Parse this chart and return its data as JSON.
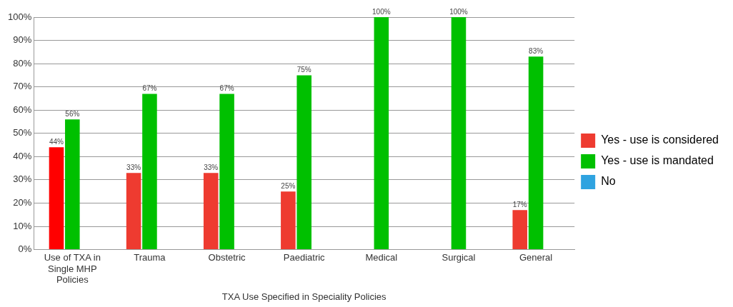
{
  "chart_data": {
    "type": "bar",
    "xlabel": "TXA Use Specified in Speciality Policies",
    "categories": [
      "Use of TXA in Single MHP Policies",
      "Trauma",
      "Obstetric",
      "Paediatric",
      "Medical",
      "Surgical",
      "General"
    ],
    "series": [
      {
        "name": "Yes - use is considered",
        "color": "#ee3b30",
        "colors": [
          "#ff0000",
          "#ee3b30",
          "#ee3b30",
          "#ee3b30",
          "#ee3b30",
          "#ee3b30",
          "#ee3b30"
        ],
        "values": [
          44,
          33,
          33,
          25,
          null,
          null,
          17
        ],
        "value_labels": [
          "44%",
          "33%",
          "33%",
          "25%",
          null,
          null,
          "17%"
        ]
      },
      {
        "name": "Yes - use is mandated",
        "color": "#00c000",
        "values": [
          56,
          67,
          67,
          75,
          100,
          100,
          83
        ],
        "value_labels": [
          "56%",
          "67%",
          "67%",
          "75%",
          "100%",
          "100%",
          "83%"
        ]
      },
      {
        "name": "No",
        "color": "#2fa3e0",
        "values": [
          null,
          null,
          null,
          null,
          null,
          null,
          null
        ]
      }
    ],
    "ylim": [
      0,
      100
    ],
    "yticks": [
      {
        "value": 0,
        "label": "0%"
      },
      {
        "value": 10,
        "label": "10%"
      },
      {
        "value": 20,
        "label": "20%"
      },
      {
        "value": 30,
        "label": "30%"
      },
      {
        "value": 40,
        "label": "40%"
      },
      {
        "value": 50,
        "label": "50%"
      },
      {
        "value": 60,
        "label": "60%"
      },
      {
        "value": 70,
        "label": "70%"
      },
      {
        "value": 80,
        "label": "80%"
      },
      {
        "value": 90,
        "label": "90%"
      },
      {
        "value": 100,
        "label": "100%"
      }
    ],
    "grid": "y",
    "legend": "right"
  }
}
